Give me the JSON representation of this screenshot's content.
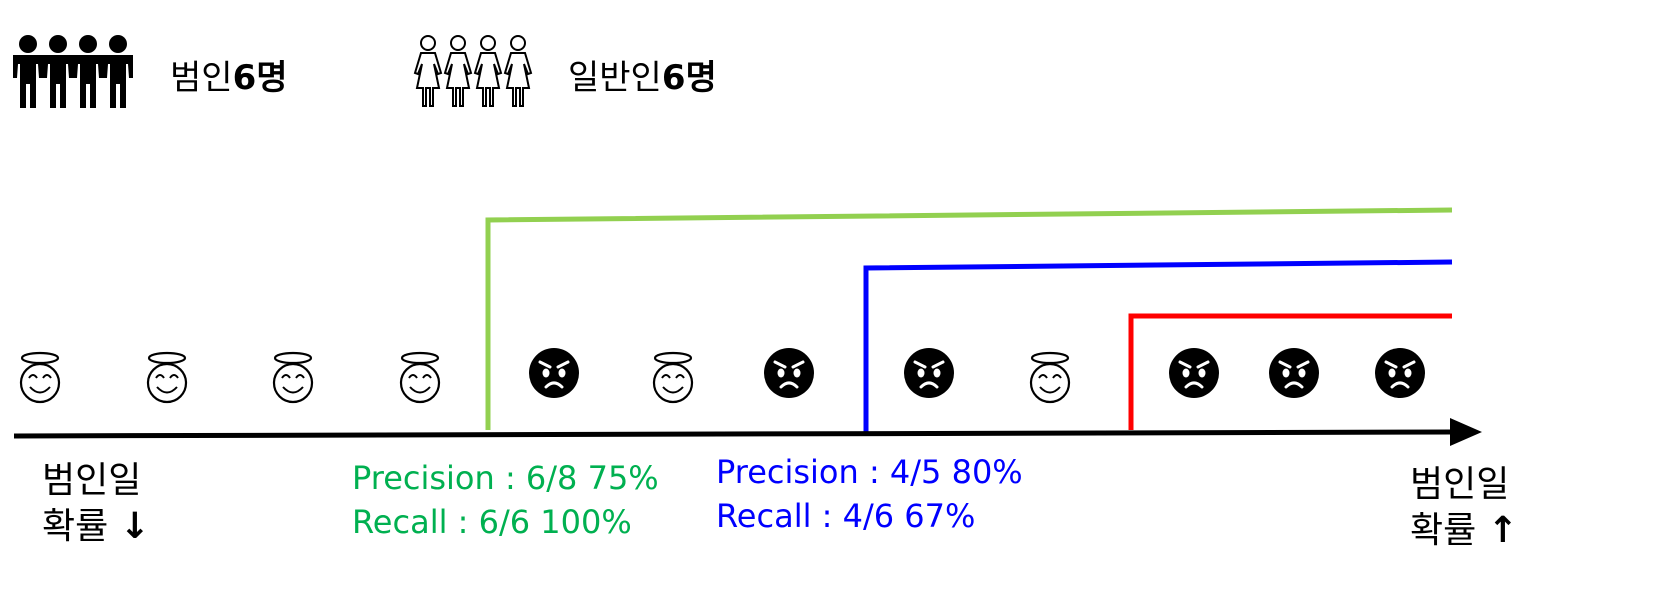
{
  "legend": {
    "criminal_label": "범인",
    "criminal_count": "6명",
    "normal_label": "일반인",
    "normal_count": "6명"
  },
  "sequence": [
    "innocent",
    "innocent",
    "innocent",
    "innocent",
    "criminal",
    "innocent",
    "criminal",
    "criminal",
    "innocent",
    "criminal",
    "criminal",
    "criminal"
  ],
  "axis": {
    "left_line1": "범인일",
    "left_line2": "확률",
    "left_arrow": "↓",
    "right_line1": "범인일",
    "right_line2": "확률",
    "right_arrow": "↑"
  },
  "thresholds": [
    {
      "id": "green",
      "color": "#92d050",
      "after_item": 4,
      "precision": "Precision : 6/8 75%",
      "recall": "Recall : 6/6 100%",
      "text_color": "#00b050"
    },
    {
      "id": "blue",
      "color": "#0000ff",
      "after_item": 7,
      "precision": "Precision : 4/5 80%",
      "recall": "Recall : 4/6 67%",
      "text_color": "#0000ff"
    },
    {
      "id": "red",
      "color": "#ff0000",
      "after_item": 9
    }
  ],
  "icons": {
    "criminal": "angry-face-icon",
    "innocent": "smiling-face-with-halo-icon"
  }
}
